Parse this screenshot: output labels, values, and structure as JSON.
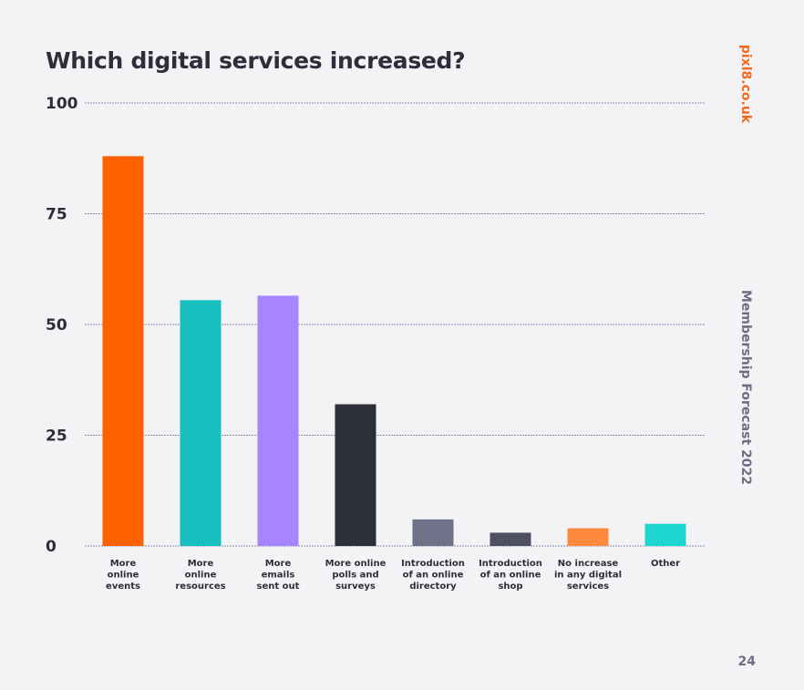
{
  "header": {
    "title": "Which digital services increased?",
    "brand": "pixl8.co.uk",
    "side_title": "Membership Forecast 2022"
  },
  "footer": {
    "page_number": "24"
  },
  "colors": {
    "background": "#f3f3f6",
    "text": "#2c2e3a",
    "brand": "#f26a1b",
    "muted": "#6c6f82"
  },
  "chart_data": {
    "type": "bar",
    "title": "Which digital services increased?",
    "xlabel": "",
    "ylabel": "",
    "ylim": [
      0,
      100
    ],
    "yticks": [
      0,
      25,
      50,
      75,
      100
    ],
    "grid": true,
    "legend": "none",
    "categories": [
      [
        "More",
        "online",
        "events"
      ],
      [
        "More",
        "online",
        "resources"
      ],
      [
        "More",
        "emails",
        "sent out"
      ],
      [
        "More online",
        "polls and",
        "surveys"
      ],
      [
        "Introduction",
        "of an online",
        "directory"
      ],
      [
        "Introduction",
        "of an online",
        "shop"
      ],
      [
        "No increase",
        "in any digital",
        "services"
      ],
      [
        "Other"
      ]
    ],
    "values": [
      88,
      55.5,
      56.5,
      32,
      6,
      3,
      4,
      5
    ],
    "bar_colors": [
      "#ff6100",
      "#19bfbe",
      "#a685ff",
      "#2c2f38",
      "#6e7187",
      "#4e5062",
      "#ff8a3d",
      "#1dd6cf"
    ]
  }
}
